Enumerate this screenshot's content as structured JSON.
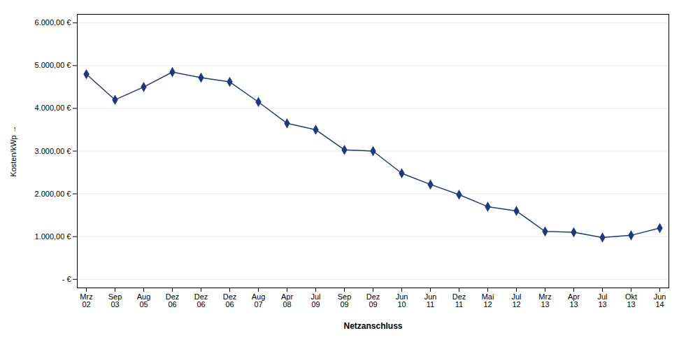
{
  "chart_data": {
    "type": "line",
    "categories": [
      "Mrz\n02",
      "Sep\n03",
      "Aug\n05",
      "Dez\n06",
      "Dez\n06",
      "Dez\n06",
      "Aug\n07",
      "Apr\n08",
      "Jul\n09",
      "Sep\n09",
      "Dez\n09",
      "Jun\n10",
      "Jun\n11",
      "Dez\n11",
      "Mai\n12",
      "Jul\n12",
      "Mrz\n13",
      "Apr\n13",
      "Jul\n13",
      "Okt\n13",
      "Jun\n14"
    ],
    "values": [
      4800,
      4200,
      4500,
      4850,
      4720,
      4620,
      4150,
      3650,
      3500,
      3030,
      3000,
      2480,
      2220,
      1980,
      1700,
      1600,
      1120,
      1100,
      980,
      1030,
      1200
    ],
    "color": "#1F3A7A",
    "marker": "diamond",
    "xlabel": "Netzanschluss",
    "ylabel": "Kosten/kWp",
    "ylim": [
      -200,
      6200
    ],
    "yticks": [
      {
        "value": 0,
        "label": "- €"
      },
      {
        "value": 1000,
        "label": "1.000,00 €"
      },
      {
        "value": 2000,
        "label": "2.000,00 €"
      },
      {
        "value": 3000,
        "label": "3.000,00 €"
      },
      {
        "value": 4000,
        "label": "4.000,00 €"
      },
      {
        "value": 5000,
        "label": "5.000,00 €"
      },
      {
        "value": 6000,
        "label": "6.000,00 €"
      }
    ],
    "grid": true
  }
}
